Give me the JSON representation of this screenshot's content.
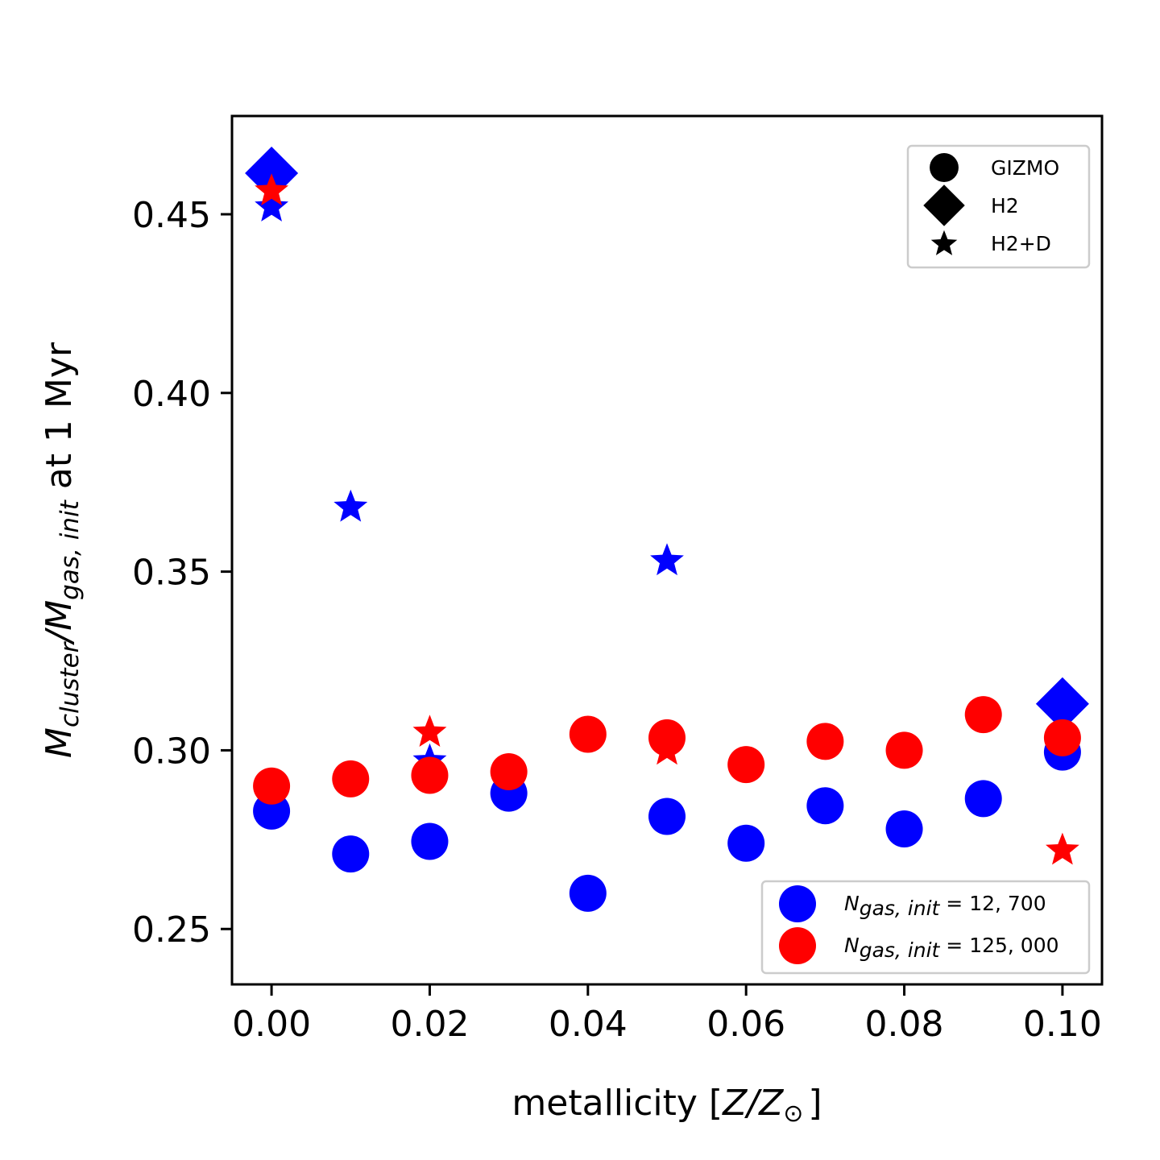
{
  "chart_data": {
    "type": "scatter",
    "xlabel": {
      "prefix": "metallicity [",
      "z": "Z",
      "slash": "/",
      "zsun": "Z",
      "sun_symbol": "⊙",
      "suffix": "]"
    },
    "ylabel": {
      "m1": "M",
      "sub1": "cluster",
      "slash": "/",
      "m2": "M",
      "sub2": "gas, init",
      "suffix": " at 1 Myr"
    },
    "xlim": [
      -0.005,
      0.105
    ],
    "ylim": [
      0.2345,
      0.4775
    ],
    "xticks": [
      0.0,
      0.02,
      0.04,
      0.06,
      0.08,
      0.1
    ],
    "xtick_labels": [
      "0.00",
      "0.02",
      "0.04",
      "0.06",
      "0.08",
      "0.10"
    ],
    "yticks": [
      0.25,
      0.3,
      0.35,
      0.4,
      0.45
    ],
    "ytick_labels": [
      "0.25",
      "0.30",
      "0.35",
      "0.40",
      "0.45"
    ],
    "colors": {
      "low_res": "#0000ff",
      "high_res": "#ff0000",
      "legend_marker": "#000000"
    },
    "marker_legend": {
      "placement": "top-right",
      "entries": [
        {
          "marker": "circle",
          "label": "GIZMO"
        },
        {
          "marker": "diamond",
          "label": "H2"
        },
        {
          "marker": "star",
          "label": "H2+D"
        }
      ]
    },
    "color_legend": {
      "placement": "lower-right",
      "entries": [
        {
          "color": "#0000ff",
          "sym": "N",
          "sub": "gas, init",
          "eq": " = 12, 700"
        },
        {
          "color": "#ff0000",
          "sym": "N",
          "sub": "gas, init",
          "eq": " = 125, 000"
        }
      ]
    },
    "series": [
      {
        "marker": "diamond",
        "color": "#0000ff",
        "points": [
          [
            0.0,
            0.4615
          ],
          [
            0.1,
            0.313
          ]
        ]
      },
      {
        "marker": "circle",
        "color": "#0000ff",
        "points": [
          [
            0.0,
            0.283
          ],
          [
            0.01,
            0.271
          ],
          [
            0.02,
            0.2745
          ],
          [
            0.03,
            0.288
          ],
          [
            0.04,
            0.26
          ],
          [
            0.05,
            0.2815
          ],
          [
            0.06,
            0.274
          ],
          [
            0.07,
            0.2845
          ],
          [
            0.08,
            0.278
          ],
          [
            0.09,
            0.2865
          ],
          [
            0.1,
            0.2995
          ]
        ]
      },
      {
        "marker": "star",
        "color": "#0000ff",
        "points": [
          [
            0.0,
            0.452
          ],
          [
            0.01,
            0.368
          ],
          [
            0.02,
            0.297
          ],
          [
            0.05,
            0.353
          ]
        ]
      },
      {
        "marker": "circle",
        "color": "#ff0000",
        "points": [
          [
            0.0,
            0.29
          ],
          [
            0.01,
            0.292
          ],
          [
            0.02,
            0.293
          ],
          [
            0.03,
            0.294
          ],
          [
            0.04,
            0.3045
          ],
          [
            0.05,
            0.3035
          ],
          [
            0.06,
            0.296
          ],
          [
            0.07,
            0.3025
          ],
          [
            0.08,
            0.3
          ],
          [
            0.09,
            0.31
          ],
          [
            0.1,
            0.3035
          ]
        ]
      },
      {
        "marker": "star",
        "color": "#ff0000",
        "points": [
          [
            0.0,
            0.4565
          ],
          [
            0.02,
            0.305
          ],
          [
            0.05,
            0.3
          ],
          [
            0.1,
            0.272
          ]
        ]
      }
    ]
  }
}
